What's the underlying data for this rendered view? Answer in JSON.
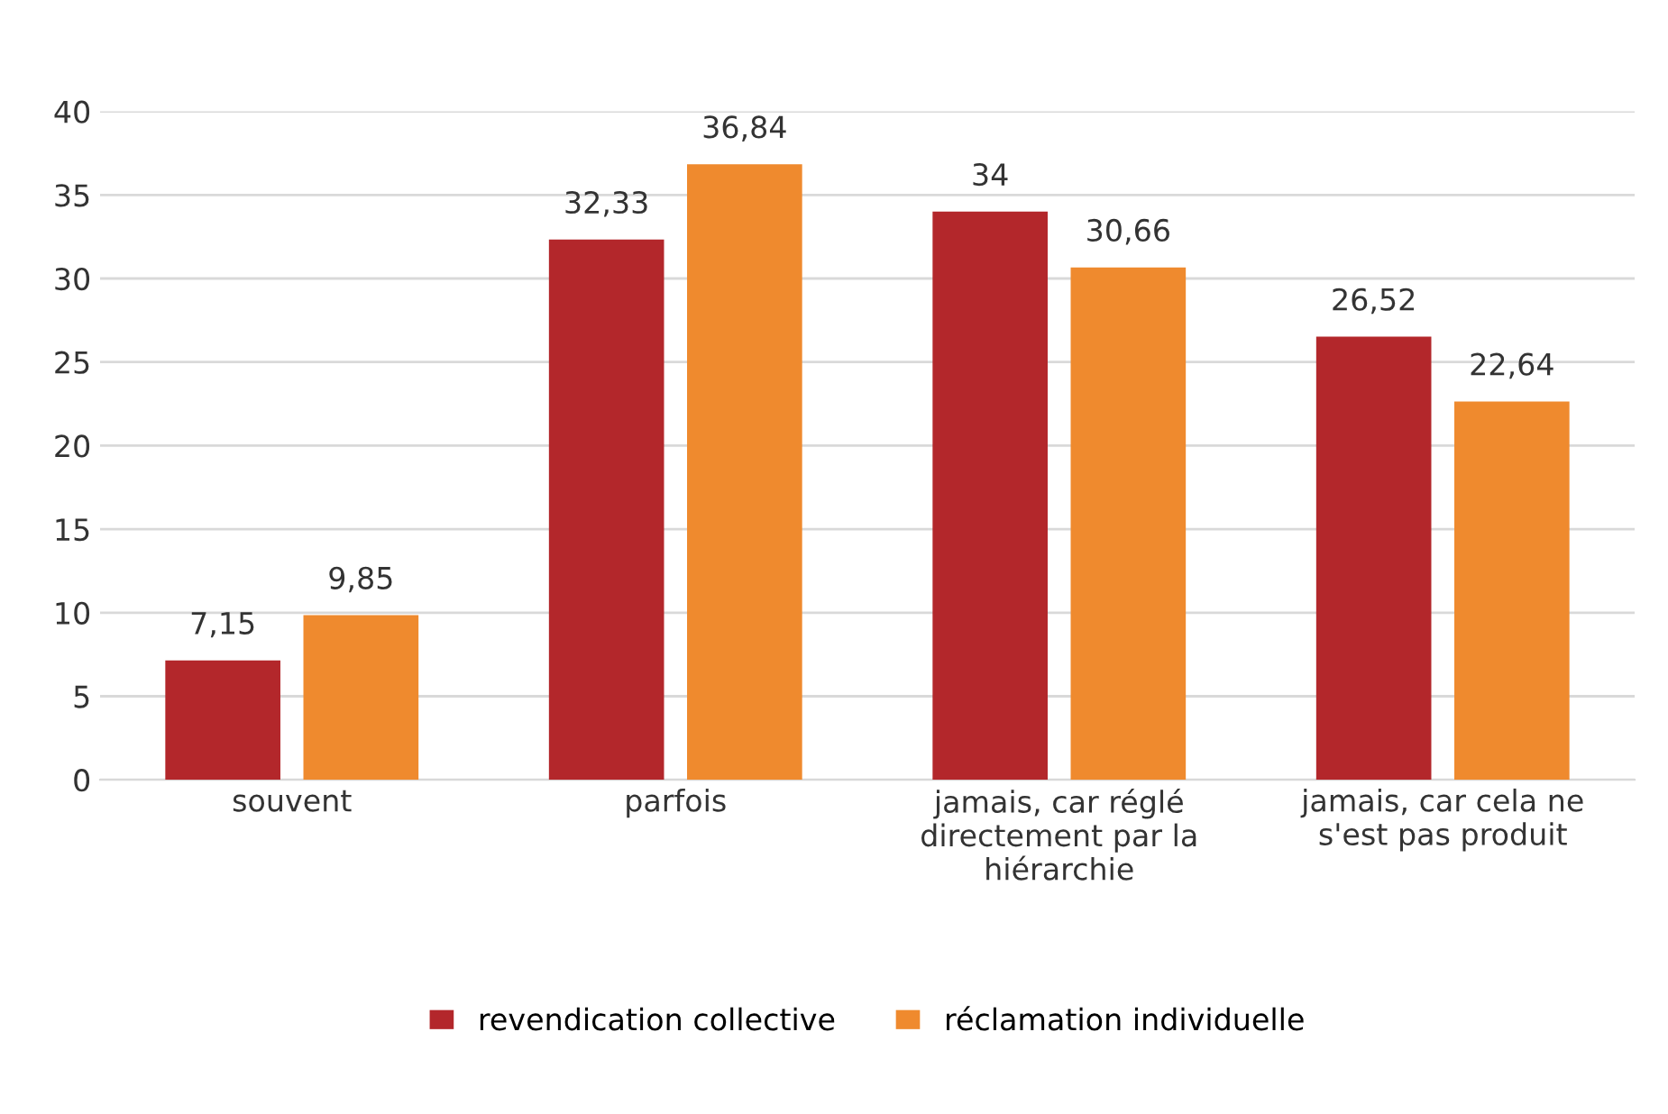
{
  "chart_data": {
    "type": "bar",
    "categories": [
      "souvent",
      "parfois",
      "jamais, car réglé\ndirectement par la\nhiérarchie",
      "jamais, car cela ne\ns'est pas produit"
    ],
    "series": [
      {
        "name": "revendication collective",
        "color": "#b3272b",
        "values": [
          7.15,
          32.33,
          34,
          26.52
        ],
        "value_labels": [
          "7,15",
          "32,33",
          "34",
          "26,52"
        ]
      },
      {
        "name": "réclamation individuelle",
        "color": "#ef8a2e",
        "values": [
          9.85,
          36.84,
          30.66,
          22.64
        ],
        "value_labels": [
          "9,85",
          "36,84",
          "30,66",
          "22,64"
        ]
      }
    ],
    "ylim": [
      0,
      40
    ],
    "yticks": [
      0,
      5,
      10,
      15,
      20,
      25,
      30,
      35,
      40
    ],
    "grid": "y",
    "legend": "bottom"
  }
}
